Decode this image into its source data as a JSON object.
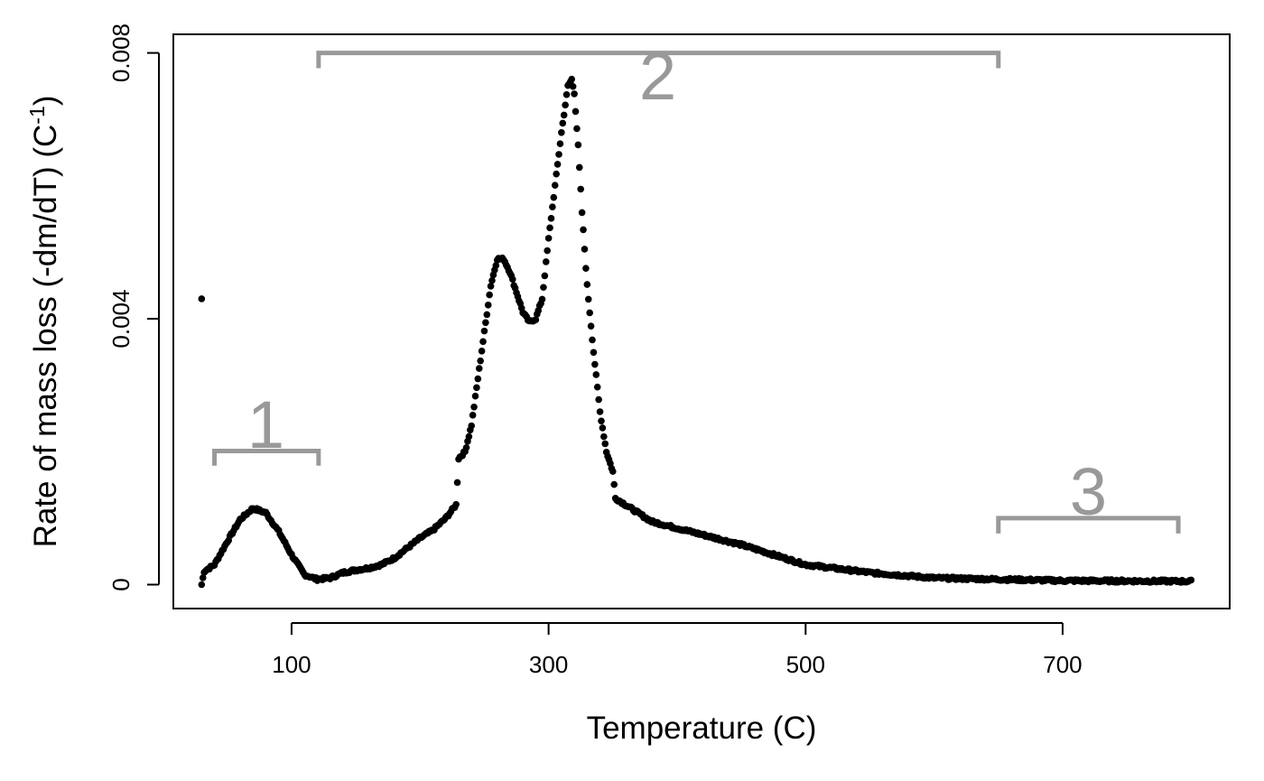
{
  "chart_data": {
    "type": "scatter",
    "title": "",
    "xlabel": "Temperature (C)",
    "ylabel_main": "Rate of mass loss (-dm/dT) (C",
    "ylabel_sup": "-1",
    "ylabel_close": ")",
    "xlim": [
      8,
      830
    ],
    "ylim": [
      -0.00036,
      0.00828
    ],
    "xticks": [
      {
        "value": 100,
        "label": "100"
      },
      {
        "value": 300,
        "label": "300"
      },
      {
        "value": 500,
        "label": "500"
      },
      {
        "value": 700,
        "label": "700"
      }
    ],
    "yticks": [
      {
        "value": 0,
        "label": "0"
      },
      {
        "value": 0.004,
        "label": "0.004"
      },
      {
        "value": 0.008,
        "label": "0.008"
      }
    ],
    "point_color": "#000000",
    "annotation_color": "#999999",
    "outlier": {
      "x": 30,
      "y": 0.0043
    },
    "curve_anchors": [
      [
        30,
        0.0
      ],
      [
        32,
        0.0002
      ],
      [
        40,
        0.0003
      ],
      [
        50,
        0.00065
      ],
      [
        60,
        0.00098
      ],
      [
        70,
        0.00115
      ],
      [
        80,
        0.00108
      ],
      [
        90,
        0.0008
      ],
      [
        100,
        0.00045
      ],
      [
        110,
        0.00015
      ],
      [
        120,
        8e-05
      ],
      [
        130,
        0.0001
      ],
      [
        140,
        0.00018
      ],
      [
        150,
        0.00022
      ],
      [
        160,
        0.00025
      ],
      [
        170,
        0.0003
      ],
      [
        180,
        0.0004
      ],
      [
        190,
        0.00055
      ],
      [
        200,
        0.0007
      ],
      [
        210,
        0.00082
      ],
      [
        220,
        0.001
      ],
      [
        228,
        0.0012
      ],
      [
        230,
        0.0019
      ],
      [
        235,
        0.002
      ],
      [
        240,
        0.0024
      ],
      [
        245,
        0.0031
      ],
      [
        250,
        0.0038
      ],
      [
        255,
        0.0045
      ],
      [
        260,
        0.0049
      ],
      [
        265,
        0.0049
      ],
      [
        270,
        0.0047
      ],
      [
        275,
        0.0044
      ],
      [
        280,
        0.0041
      ],
      [
        285,
        0.00395
      ],
      [
        290,
        0.004
      ],
      [
        295,
        0.0043
      ],
      [
        300,
        0.0052
      ],
      [
        305,
        0.006
      ],
      [
        310,
        0.0068
      ],
      [
        315,
        0.0075
      ],
      [
        318,
        0.0076
      ],
      [
        320,
        0.0074
      ],
      [
        323,
        0.0066
      ],
      [
        326,
        0.0056
      ],
      [
        330,
        0.0045
      ],
      [
        335,
        0.0035
      ],
      [
        340,
        0.0026
      ],
      [
        345,
        0.002
      ],
      [
        350,
        0.0017
      ],
      [
        352,
        0.0013
      ],
      [
        360,
        0.0012
      ],
      [
        380,
        0.00095
      ],
      [
        400,
        0.00085
      ],
      [
        450,
        0.0006
      ],
      [
        500,
        0.0003
      ],
      [
        550,
        0.00018
      ],
      [
        600,
        0.0001
      ],
      [
        650,
        8e-05
      ],
      [
        700,
        6e-05
      ],
      [
        800,
        5e-05
      ]
    ],
    "annotations": [
      {
        "label": "1",
        "x_start": 40,
        "x_end": 121,
        "y_bar": 0.00201,
        "y_tip": 0.00179,
        "label_x": 80,
        "label_y": 0.00206
      },
      {
        "label": "2",
        "x_start": 121,
        "x_end": 650,
        "y_bar": 0.008,
        "y_tip": 0.00777,
        "label_x": 385,
        "label_y": 0.0073
      },
      {
        "label": "3",
        "x_start": 650,
        "x_end": 790,
        "y_bar": 0.001,
        "y_tip": 0.00077,
        "label_x": 720,
        "label_y": 0.00105
      }
    ]
  }
}
